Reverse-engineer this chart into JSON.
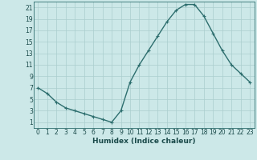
{
  "x": [
    0,
    1,
    2,
    3,
    4,
    5,
    6,
    7,
    8,
    9,
    10,
    11,
    12,
    13,
    14,
    15,
    16,
    17,
    18,
    19,
    20,
    21,
    22,
    23
  ],
  "y": [
    7,
    6,
    4.5,
    3.5,
    3,
    2.5,
    2,
    1.5,
    1,
    3,
    8,
    11,
    13.5,
    16,
    18.5,
    20.5,
    21.5,
    21.5,
    19.5,
    16.5,
    13.5,
    11,
    9.5,
    8
  ],
  "line_color": "#2d6e6e",
  "marker": "+",
  "bg_color": "#cce8e8",
  "grid_color": "#aacece",
  "xlabel": "Humidex (Indice chaleur)",
  "ylim": [
    0,
    22
  ],
  "xlim": [
    -0.5,
    23.5
  ],
  "yticks": [
    1,
    3,
    5,
    7,
    9,
    11,
    13,
    15,
    17,
    19,
    21
  ],
  "xticks": [
    0,
    1,
    2,
    3,
    4,
    5,
    6,
    7,
    8,
    9,
    10,
    11,
    12,
    13,
    14,
    15,
    16,
    17,
    18,
    19,
    20,
    21,
    22,
    23
  ],
  "xlabel_fontsize": 6.5,
  "tick_fontsize": 5.5,
  "linewidth": 1.0,
  "markersize": 3.5
}
